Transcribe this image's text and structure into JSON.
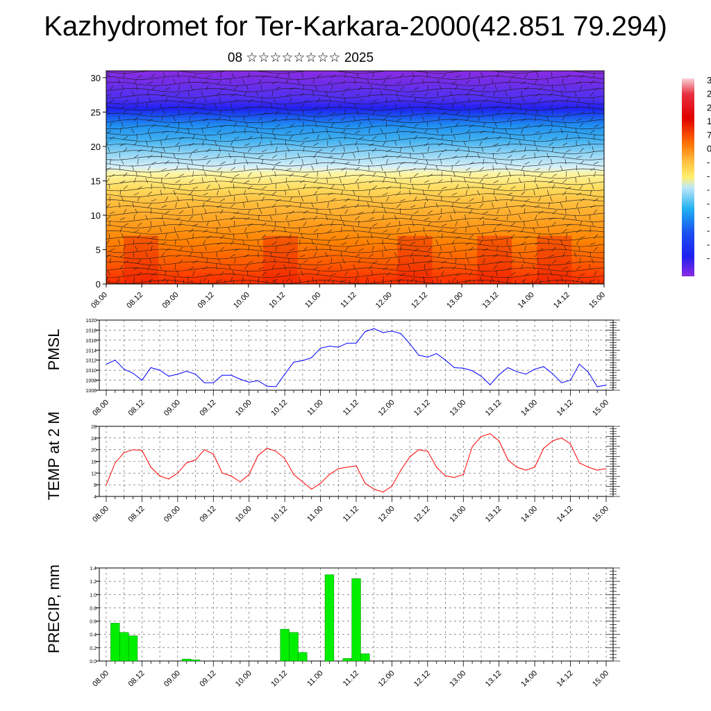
{
  "title": "Kazhydromet for Ter-Karkara-2000(42.851 79.294)",
  "subtitle": "08 ☆☆☆☆☆☆☆☆ 2025",
  "time_labels": [
    "08.00",
    "08.12",
    "09.00",
    "09.12",
    "10.00",
    "10.12",
    "11.00",
    "11.12",
    "12.00",
    "12.12",
    "13.00",
    "13.12",
    "14.00",
    "14.12",
    "15.00"
  ],
  "colorbar_labels": [
    "3",
    "2",
    "2",
    "1",
    "7",
    "0",
    "-",
    "-",
    "-",
    "-",
    "-",
    "-",
    "-",
    "-"
  ],
  "chart_data": [
    {
      "type": "heatmap",
      "name_key": "temperature cross-section with wind barbs",
      "ylabel": "",
      "ylim": [
        0,
        31
      ],
      "yticks": [
        0,
        5,
        10,
        15,
        20,
        25,
        30
      ],
      "x": [
        "08.00",
        "08.12",
        "09.00",
        "09.12",
        "10.00",
        "10.12",
        "11.00",
        "11.12",
        "12.00",
        "12.12",
        "13.00",
        "13.12",
        "14.00",
        "14.12",
        "15.00"
      ],
      "colorbar": "right"
    },
    {
      "type": "line",
      "ylabel": "PMSL",
      "ylim": [
        1006,
        1020
      ],
      "yticks": [
        1006,
        1008,
        1010,
        1012,
        1014,
        1016,
        1018,
        1020
      ],
      "color": "#0000ff",
      "grid": true,
      "values": [
        1011.2,
        1012.0,
        1010.2,
        1009.4,
        1008.0,
        1010.5,
        1010.0,
        1008.8,
        1009.2,
        1009.8,
        1009.2,
        1007.5,
        1007.5,
        1009.0,
        1009.0,
        1008.2,
        1007.6,
        1007.9,
        1006.8,
        1006.7,
        1009.2,
        1011.6,
        1011.9,
        1012.5,
        1014.4,
        1014.8,
        1014.6,
        1015.4,
        1015.4,
        1017.7,
        1018.3,
        1017.5,
        1017.8,
        1017.3,
        1015.3,
        1013.0,
        1012.6,
        1013.3,
        1012.0,
        1010.5,
        1010.4,
        1009.9,
        1008.8,
        1007.1,
        1009.1,
        1010.5,
        1009.7,
        1009.2,
        1010.2,
        1010.7,
        1009.3,
        1007.5,
        1008.0,
        1011.2,
        1009.6,
        1006.7,
        1007.0
      ]
    },
    {
      "type": "line",
      "ylabel": "TEMP at 2 M",
      "ylim": [
        4,
        28
      ],
      "yticks": [
        4,
        8,
        12,
        16,
        20,
        24,
        28
      ],
      "color": "#ff0000",
      "grid": true,
      "values": [
        8.0,
        15.5,
        19.0,
        20.0,
        19.8,
        14.0,
        11.0,
        10.0,
        12.0,
        15.5,
        16.5,
        20.0,
        18.5,
        12.0,
        11.0,
        9.0,
        11.5,
        18.0,
        20.5,
        19.5,
        17.0,
        11.5,
        9.0,
        6.5,
        8.5,
        11.5,
        13.5,
        14.0,
        14.5,
        8.5,
        6.5,
        5.5,
        7.5,
        13.0,
        17.5,
        20.0,
        19.5,
        14.0,
        11.0,
        10.5,
        11.5,
        21.0,
        24.5,
        25.5,
        23.0,
        16.5,
        14.0,
        13.0,
        14.0,
        20.5,
        23.0,
        24.0,
        22.0,
        15.5,
        14.0,
        13.0,
        13.5
      ]
    },
    {
      "type": "bar",
      "ylabel": "PRECIP, mm",
      "ylim": [
        0,
        1.4
      ],
      "yticks": [
        0.0,
        0.2,
        0.4,
        0.6,
        0.8,
        1.0,
        1.2,
        1.4
      ],
      "ytick_labels": [
        "0.0",
        "0.2",
        "0.4",
        "0.6",
        "0.8",
        "1.0",
        "1.2",
        "1.4"
      ],
      "color": "#00ee00",
      "grid": true,
      "values": [
        0,
        0.57,
        0.43,
        0.38,
        0,
        0,
        0,
        0,
        0,
        0.03,
        0.02,
        0,
        0,
        0,
        0,
        0,
        0,
        0,
        0,
        0,
        0.48,
        0.43,
        0.13,
        0,
        0,
        1.3,
        0,
        0.04,
        1.24,
        0.11,
        0,
        0,
        0,
        0,
        0,
        0,
        0,
        0,
        0,
        0,
        0,
        0,
        0,
        0,
        0,
        0,
        0,
        0,
        0,
        0,
        0,
        0,
        0,
        0,
        0,
        0,
        0
      ]
    }
  ]
}
